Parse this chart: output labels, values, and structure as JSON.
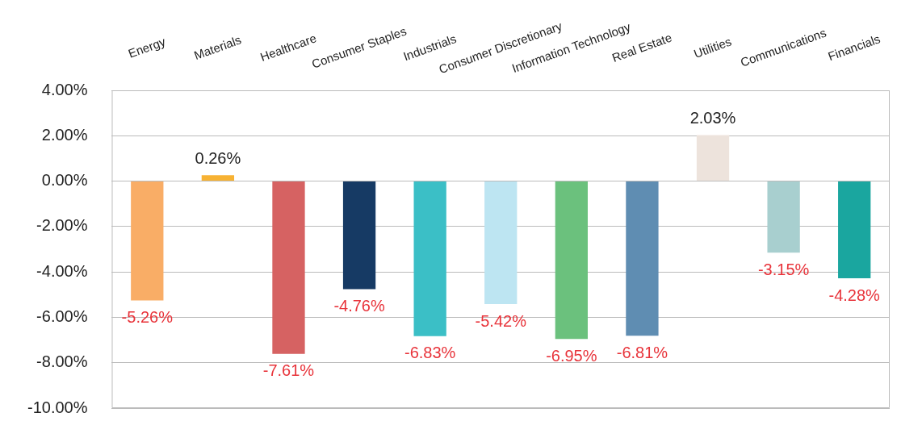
{
  "chart_data": {
    "type": "bar",
    "categories": [
      "Energy",
      "Materials",
      "Healthcare",
      "Consumer Staples",
      "Industrials",
      "Consumer Discretionary",
      "Information Technology",
      "Real Estate",
      "Utilities",
      "Communications",
      "Financials"
    ],
    "values": [
      -5.26,
      0.26,
      -7.61,
      -4.76,
      -6.83,
      -5.42,
      -6.95,
      -6.81,
      2.03,
      -3.15,
      -4.28
    ],
    "value_labels": [
      "-5.26%",
      "0.26%",
      "-7.61%",
      "-4.76%",
      "-6.83%",
      "-5.42%",
      "-6.95%",
      "-6.81%",
      "2.03%",
      "-3.15%",
      "-4.28%"
    ],
    "colors": [
      "#f9ad66",
      "#f7b233",
      "#d66262",
      "#163a64",
      "#3bbfc6",
      "#bde5f2",
      "#6bc17d",
      "#5f8db2",
      "#ede3dc",
      "#a8cfcf",
      "#1aa69f"
    ],
    "ylim": [
      -10,
      4
    ],
    "yticks": [
      {
        "value": -10,
        "label": "-10.00%"
      },
      {
        "value": -8,
        "label": "-8.00%"
      },
      {
        "value": -6,
        "label": "-6.00%"
      },
      {
        "value": -4,
        "label": "-4.00%"
      },
      {
        "value": -2,
        "label": "-2.00%"
      },
      {
        "value": 0,
        "label": "0.00%"
      },
      {
        "value": 2,
        "label": "2.00%"
      },
      {
        "value": 4,
        "label": "4.00%"
      }
    ],
    "grid": "y",
    "legend": false
  }
}
